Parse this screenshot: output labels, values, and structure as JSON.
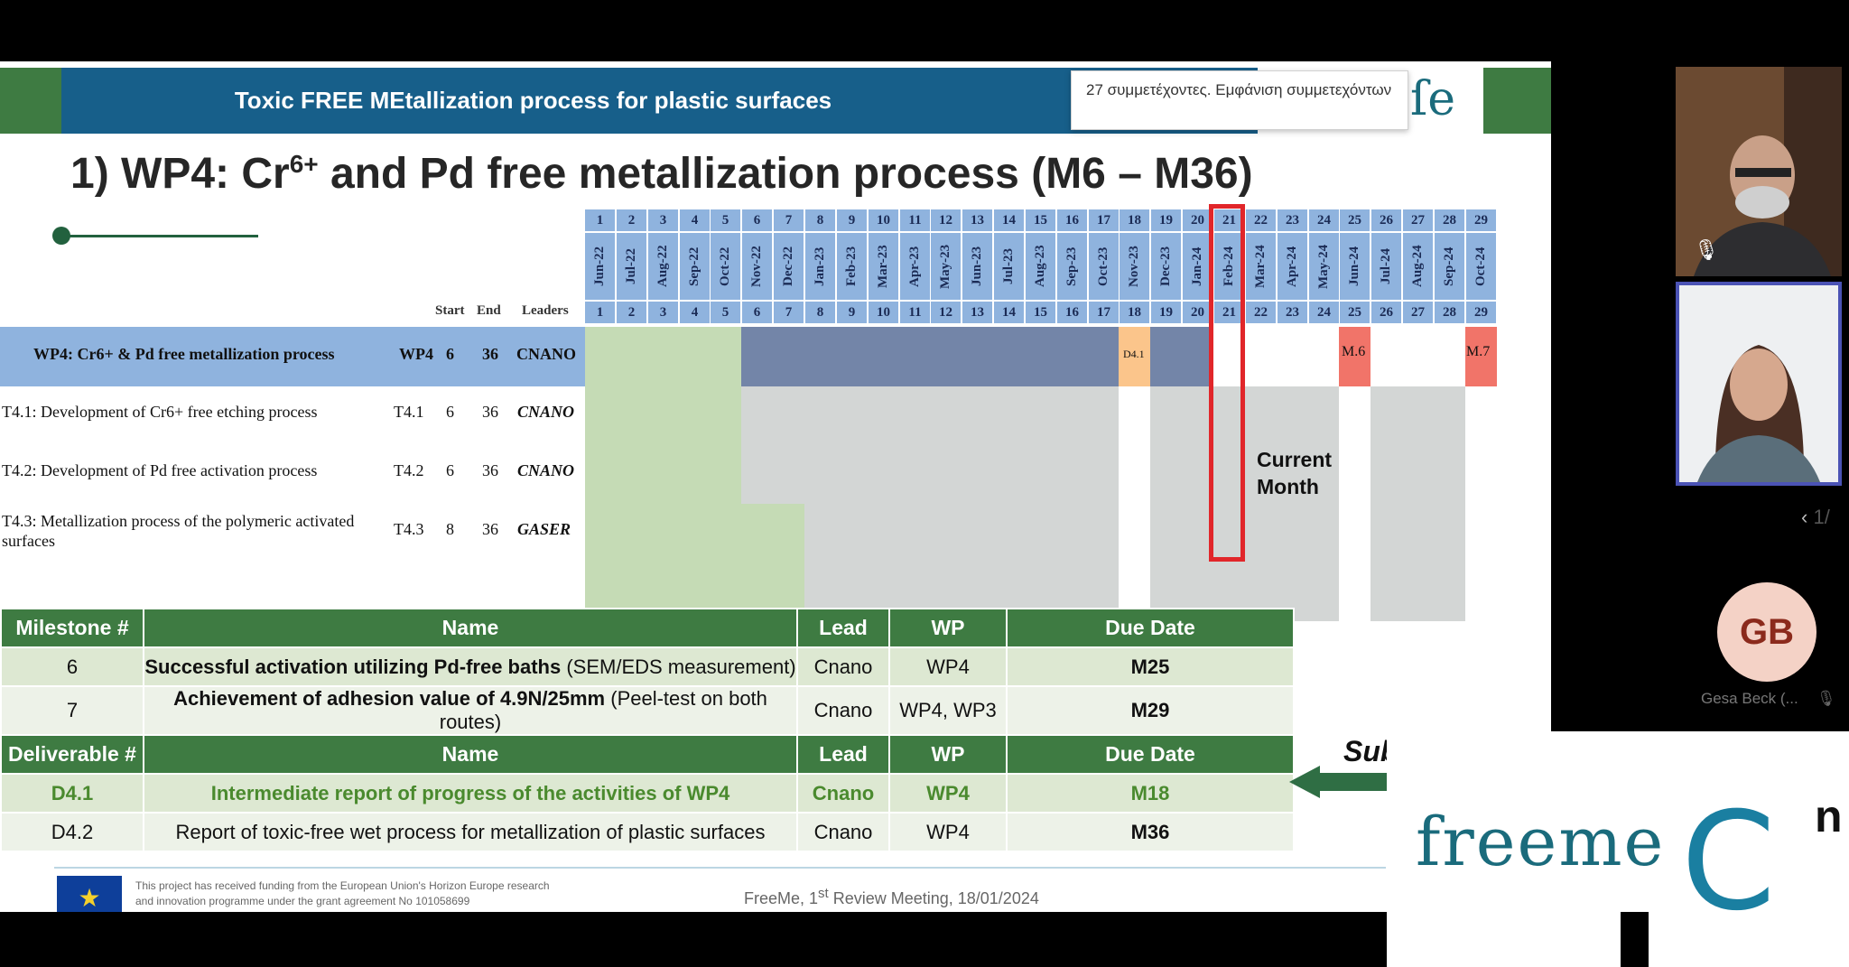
{
  "banner": {
    "title": "Toxic FREE MEtallization process for plastic surfaces"
  },
  "slide": {
    "title_prefix": "1) WP4: Cr",
    "title_sup": "6+",
    "title_suffix": " and Pd free metallization process (M6 – M36)"
  },
  "tooltip": {
    "text": "27 συμμετέχοντες. Εμφάνιση συμμετεχόντων"
  },
  "gantt": {
    "headers": {
      "start": "Start",
      "end": "End",
      "leaders": "Leaders"
    },
    "month_numbers": [
      "1",
      "2",
      "3",
      "4",
      "5",
      "6",
      "7",
      "8",
      "9",
      "10",
      "11",
      "12",
      "13",
      "14",
      "15",
      "16",
      "17",
      "18",
      "19",
      "20",
      "21",
      "22",
      "23",
      "24",
      "25",
      "26",
      "27",
      "28",
      "29"
    ],
    "month_labels": [
      "Jun-22",
      "Jul-22",
      "Aug-22",
      "Sep-22",
      "Oct-22",
      "Nov-22",
      "Dec-22",
      "Jan-23",
      "Feb-23",
      "Mar-23",
      "Apr-23",
      "May-23",
      "Jun-23",
      "Jul-23",
      "Aug-23",
      "Sep-23",
      "Oct-23",
      "Nov-23",
      "Dec-23",
      "Jan-24",
      "Feb-24",
      "Mar-24",
      "Apr-24",
      "May-24",
      "Jun-24",
      "Jul-24",
      "Aug-24",
      "Sep-24",
      "Oct-24"
    ],
    "bottom_numbers": [
      "1",
      "2",
      "3",
      "4",
      "5",
      "6",
      "7",
      "8",
      "9",
      "10",
      "11",
      "12",
      "13",
      "14",
      "15",
      "16",
      "17",
      "18",
      "19",
      "20",
      "21",
      "22",
      "23",
      "24",
      "25",
      "26",
      "27",
      "28",
      "29"
    ],
    "rows": [
      {
        "name": "WP4: Cr6+ & Pd free metallization process",
        "code": "WP4",
        "start": "6",
        "end": "36",
        "leader": "CNANO"
      },
      {
        "name": "T4.1: Development of Cr6+ free etching process",
        "code": "T4.1",
        "start": "6",
        "end": "36",
        "leader": "CNANO"
      },
      {
        "name": "T4.2: Development of Pd free activation process",
        "code": "T4.2",
        "start": "6",
        "end": "36",
        "leader": "CNANO"
      },
      {
        "name": "T4.3: Metallization process of the polymeric activated surfaces",
        "code": "T4.3",
        "start": "8",
        "end": "36",
        "leader": "GASER"
      }
    ],
    "markers": {
      "d41": "D4.1",
      "m6": "M.6",
      "m7": "M.7"
    },
    "current_month_label": [
      "Current",
      "Month"
    ]
  },
  "milestones": {
    "headers": [
      "Milestone #",
      "Name",
      "Lead",
      "WP",
      "Due Date"
    ],
    "rows": [
      {
        "num": "6",
        "name_bold": "Successful activation utilizing Pd-free baths",
        "name_rest": " (SEM/EDS measurement)",
        "lead": "Cnano",
        "wp": "WP4",
        "due": "M25"
      },
      {
        "num": "7",
        "name_bold": "Achievement of adhesion value of 4.9N/25mm",
        "name_rest": " (Peel-test on both routes)",
        "lead": "Cnano",
        "wp": "WP4, WP3",
        "due": "M29"
      }
    ]
  },
  "deliverables": {
    "headers": [
      "Deliverable #",
      "Name",
      "Lead",
      "WP",
      "Due Date"
    ],
    "rows": [
      {
        "num": "D4.1",
        "name": "Intermediate report of progress of the activities of WP4",
        "lead": "Cnano",
        "wp": "WP4",
        "due": "M18"
      },
      {
        "num": "D4.2",
        "name": "Report of toxic-free wet process for metallization of plastic surfaces",
        "lead": "Cnano",
        "wp": "WP4",
        "due": "M36"
      }
    ]
  },
  "sub_label": "Sub",
  "footer": {
    "eu_text_1": "This project has received funding from the European Union's Horizon Europe research",
    "eu_text_2": "and innovation programme under the grant agreement No 101058699",
    "meeting_prefix": "FreeMe, 1",
    "meeting_sup": "st",
    "meeting_suffix": " Review Meeting, 18/01/2024"
  },
  "participants": {
    "pager": "1/",
    "avatar_initials": "GB",
    "avatar_name": "Gesa Beck (..."
  },
  "logos": {
    "freeme": "freeme",
    "cn_main": "C",
    "cn_sup": "n"
  },
  "colors": {
    "green": "#3e7b42",
    "blue_banner": "#175f8a",
    "gantt_blue": "#8fb3de",
    "current_month": "#e1262a"
  }
}
